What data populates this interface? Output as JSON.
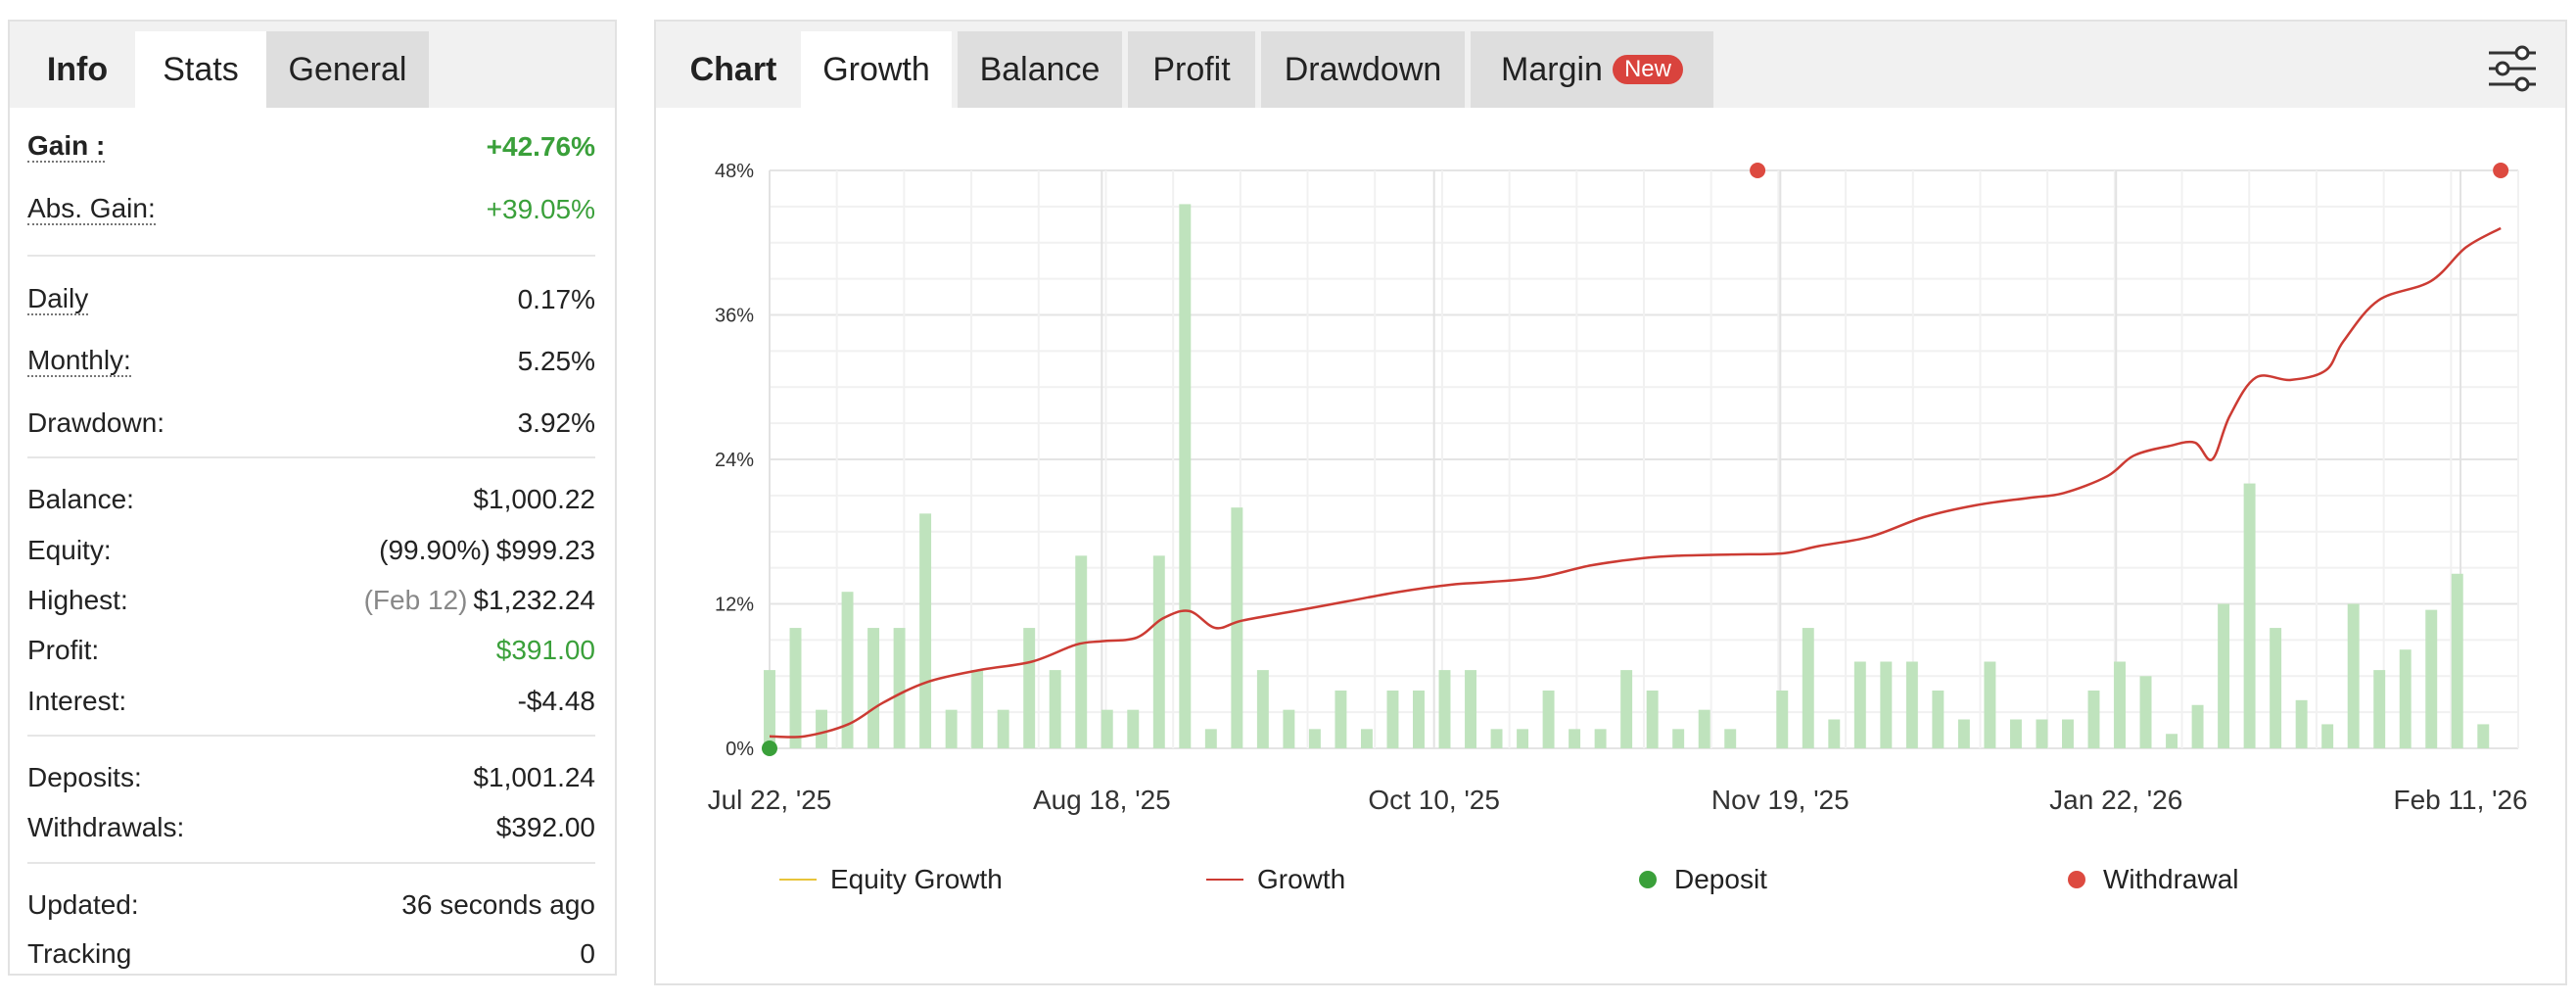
{
  "left": {
    "tabs": [
      {
        "label": "Info"
      },
      {
        "label": "Stats"
      },
      {
        "label": "General"
      }
    ],
    "stats": {
      "gain": {
        "label": "Gain :",
        "value": "+42.76%"
      },
      "abs_gain": {
        "label": "Abs. Gain:",
        "value": "+39.05%"
      },
      "daily": {
        "label": "Daily",
        "value": "0.17%"
      },
      "monthly": {
        "label": "Monthly:",
        "value": "5.25%"
      },
      "drawdown": {
        "label": "Drawdown:",
        "value": "3.92%"
      },
      "balance": {
        "label": "Balance:",
        "value": "$1,000.22"
      },
      "equity": {
        "label": "Equity:",
        "note": "(99.90%)",
        "value": "$999.23"
      },
      "highest": {
        "label": "Highest:",
        "note": "(Feb 12)",
        "value": "$1,232.24"
      },
      "profit": {
        "label": "Profit:",
        "value": "$391.00"
      },
      "interest": {
        "label": "Interest:",
        "value": "-$4.48"
      },
      "deposits": {
        "label": "Deposits:",
        "value": "$1,001.24"
      },
      "withdrawals": {
        "label": "Withdrawals:",
        "value": "$392.00"
      },
      "updated": {
        "label": "Updated:",
        "value": "36 seconds ago"
      },
      "tracking": {
        "label": "Tracking",
        "value": "0"
      }
    }
  },
  "right": {
    "tabs": [
      {
        "label": "Chart"
      },
      {
        "label": "Growth"
      },
      {
        "label": "Balance"
      },
      {
        "label": "Profit"
      },
      {
        "label": "Drawdown"
      },
      {
        "label": "Margin",
        "badge": "New"
      }
    ],
    "settings_icon": "sliders-icon"
  },
  "colors": {
    "gain_green": "#3aa03a",
    "growth_line": "#cc3b33",
    "bar_fill": "#bfe3bd",
    "deposit_marker": "#3aa03a",
    "withdrawal_marker": "#dd4a40",
    "badge_red": "#d9433d",
    "equity_line": "#e8c43a"
  },
  "chart_data": {
    "type": "line",
    "ylim": [
      0,
      48
    ],
    "y_ticks": [
      "0%",
      "12%",
      "24%",
      "36%",
      "48%"
    ],
    "x_ticks": [
      "Jul 22, '25",
      "Aug 18, '25",
      "Oct 10, '25",
      "Nov 19, '25",
      "Jan 22, '26",
      "Feb 11, '26"
    ],
    "x_tick_positions": [
      0,
      0.19,
      0.38,
      0.578,
      0.77,
      0.967
    ],
    "legend": [
      "Equity Growth",
      "Growth",
      "Deposit",
      "Withdrawal"
    ],
    "legend_position": "bottom",
    "grid": true,
    "growth_series": {
      "name": "Growth",
      "x": [
        0.0,
        0.02,
        0.045,
        0.065,
        0.09,
        0.12,
        0.15,
        0.175,
        0.19,
        0.21,
        0.225,
        0.24,
        0.255,
        0.27,
        0.3,
        0.33,
        0.36,
        0.39,
        0.41,
        0.44,
        0.47,
        0.5,
        0.52,
        0.55,
        0.58,
        0.6,
        0.63,
        0.66,
        0.69,
        0.72,
        0.74,
        0.765,
        0.78,
        0.8,
        0.815,
        0.825,
        0.835,
        0.85,
        0.87,
        0.89,
        0.9,
        0.92,
        0.95,
        0.97,
        0.99
      ],
      "y": [
        1.0,
        1.0,
        2.0,
        3.8,
        5.5,
        6.5,
        7.2,
        8.6,
        8.9,
        9.2,
        10.8,
        11.4,
        10.0,
        10.6,
        11.4,
        12.2,
        13.0,
        13.6,
        13.8,
        14.2,
        15.2,
        15.8,
        16.0,
        16.1,
        16.2,
        16.8,
        17.6,
        19.2,
        20.2,
        20.8,
        21.2,
        22.6,
        24.3,
        25.1,
        25.4,
        24.0,
        27.6,
        30.8,
        30.6,
        31.4,
        33.8,
        37.2,
        38.8,
        41.6,
        43.2
      ]
    },
    "daily_bars": {
      "name": "Daily",
      "values": [
        6.5,
        10,
        3.2,
        13,
        10,
        10,
        19.5,
        3.2,
        6.5,
        3.2,
        10,
        6.5,
        16,
        3.2,
        3.2,
        16,
        45.2,
        1.6,
        20,
        6.5,
        3.2,
        1.6,
        4.8,
        1.6,
        4.8,
        4.8,
        6.5,
        6.5,
        1.6,
        1.6,
        4.8,
        1.6,
        1.6,
        6.5,
        4.8,
        1.6,
        3.2,
        1.6,
        0.0,
        4.8,
        10,
        2.4,
        7.2,
        7.2,
        7.2,
        4.8,
        2.4,
        7.2,
        2.4,
        2.4,
        2.4,
        4.8,
        7.2,
        6.0,
        1.2,
        3.6,
        12,
        22,
        10,
        4,
        2,
        12,
        6.5,
        8.2,
        11.5,
        14.5,
        2.0
      ],
      "x_start": 0.0,
      "x_end": 0.98
    },
    "deposits": [
      {
        "x": 0.0,
        "y": 0
      }
    ],
    "withdrawals": [
      {
        "x": 0.565,
        "y": 48
      },
      {
        "x": 0.99,
        "y": 48
      }
    ]
  }
}
